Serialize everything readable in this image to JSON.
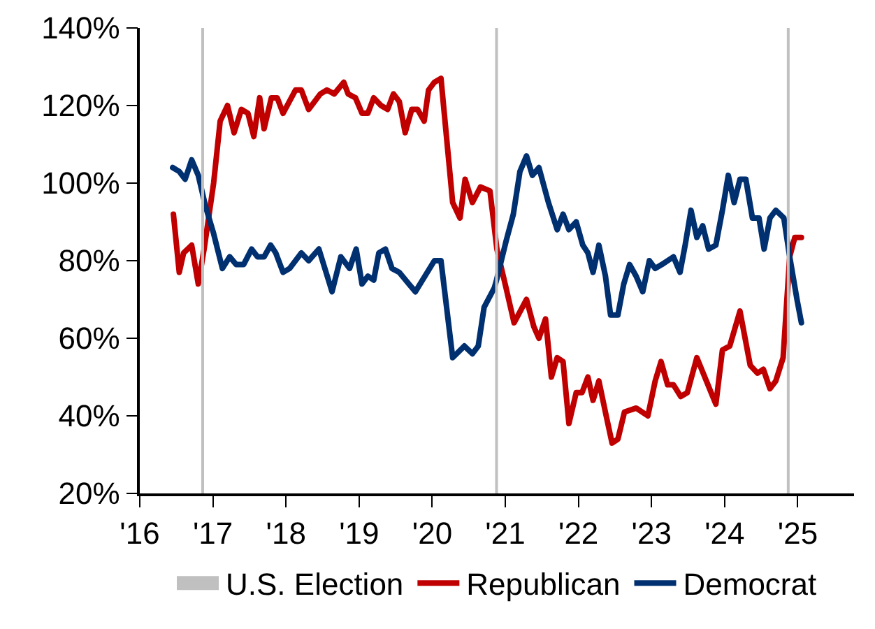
{
  "chart_data": {
    "type": "line",
    "legend": "bottom",
    "grid": false,
    "marker": "none",
    "line_style": "solid",
    "xlim": [
      2016,
      2025.77
    ],
    "xticks": [
      {
        "value": 2016,
        "label": "'16"
      },
      {
        "value": 2017,
        "label": "'17"
      },
      {
        "value": 2018,
        "label": "'18"
      },
      {
        "value": 2019,
        "label": "'19"
      },
      {
        "value": 2020,
        "label": "'20"
      },
      {
        "value": 2021,
        "label": "'21"
      },
      {
        "value": 2022,
        "label": "'22"
      },
      {
        "value": 2023,
        "label": "'23"
      },
      {
        "value": 2024,
        "label": "'24"
      },
      {
        "value": 2025,
        "label": "'25"
      }
    ],
    "ylim": [
      20,
      140
    ],
    "yticks": [
      {
        "value": 20,
        "label": "20%"
      },
      {
        "value": 40,
        "label": "40%"
      },
      {
        "value": 60,
        "label": "60%"
      },
      {
        "value": 80,
        "label": "80%"
      },
      {
        "value": 100,
        "label": "100%"
      },
      {
        "value": 120,
        "label": "120%"
      },
      {
        "value": 140,
        "label": "140%"
      }
    ],
    "ref_lines": [
      {
        "axis": "x",
        "value": 2016.86,
        "label": "U.S. Election",
        "color": "#c0c0c0"
      },
      {
        "axis": "x",
        "value": 2020.88,
        "color": "#c0c0c0"
      },
      {
        "axis": "x",
        "value": 2024.87,
        "color": "#c0c0c0"
      }
    ],
    "series": [
      {
        "name": "Republican",
        "color": "#c00000",
        "x": [
          2016.46,
          2016.54,
          2016.6,
          2016.71,
          2016.8,
          2016.88,
          2017.01,
          2017.1,
          2017.2,
          2017.29,
          2017.39,
          2017.48,
          2017.56,
          2017.64,
          2017.7,
          2017.8,
          2017.88,
          2017.96,
          2018.13,
          2018.21,
          2018.31,
          2018.47,
          2018.56,
          2018.66,
          2018.79,
          2018.85,
          2018.95,
          2019.04,
          2019.12,
          2019.2,
          2019.3,
          2019.39,
          2019.47,
          2019.55,
          2019.63,
          2019.72,
          2019.8,
          2019.89,
          2019.95,
          2020.03,
          2020.12,
          2020.28,
          2020.38,
          2020.45,
          2020.55,
          2020.66,
          2020.79,
          2020.885,
          2021.01,
          2021.12,
          2021.29,
          2021.39,
          2021.46,
          2021.55,
          2021.63,
          2021.71,
          2021.79,
          2021.87,
          2021.97,
          2022.05,
          2022.13,
          2022.2,
          2022.28,
          2022.38,
          2022.46,
          2022.54,
          2022.63,
          2022.79,
          2022.95,
          2023.05,
          2023.13,
          2023.22,
          2023.3,
          2023.4,
          2023.49,
          2023.62,
          2023.75,
          2023.88,
          2023.97,
          2024.07,
          2024.21,
          2024.35,
          2024.45,
          2024.53,
          2024.62,
          2024.7,
          2024.8,
          2024.89,
          2024.96,
          2025.05
        ],
        "values": [
          92,
          77,
          82,
          84,
          74,
          83,
          100,
          116,
          120,
          113,
          119,
          118,
          112,
          122,
          114,
          122,
          122,
          118,
          124,
          124,
          119,
          123,
          124,
          123,
          126,
          123,
          122,
          118,
          118,
          122,
          120,
          119,
          123,
          121,
          113,
          119,
          119,
          116,
          124,
          126,
          127,
          95,
          91,
          101,
          95,
          99,
          98,
          83,
          73,
          64,
          70,
          63,
          60,
          65,
          50,
          55,
          54,
          38,
          46,
          46,
          50,
          44,
          49,
          40,
          33,
          34,
          41,
          42,
          40,
          49,
          54,
          48,
          48,
          45,
          46,
          55,
          49,
          43,
          57,
          58,
          67,
          53,
          51,
          52,
          47,
          49,
          55,
          81,
          86,
          86
        ]
      },
      {
        "name": "Democrat",
        "color": "#003070",
        "x": [
          2016.45,
          2016.54,
          2016.62,
          2016.71,
          2016.8,
          2016.9,
          2017.01,
          2017.13,
          2017.23,
          2017.32,
          2017.42,
          2017.53,
          2017.61,
          2017.7,
          2017.79,
          2017.86,
          2017.96,
          2018.05,
          2018.21,
          2018.31,
          2018.45,
          2018.63,
          2018.75,
          2018.87,
          2018.96,
          2019.04,
          2019.12,
          2019.2,
          2019.27,
          2019.36,
          2019.45,
          2019.55,
          2019.68,
          2019.77,
          2020.03,
          2020.12,
          2020.28,
          2020.44,
          2020.55,
          2020.63,
          2020.71,
          2020.85,
          2020.88,
          2021.01,
          2021.11,
          2021.2,
          2021.29,
          2021.37,
          2021.46,
          2021.59,
          2021.71,
          2021.79,
          2021.87,
          2021.97,
          2022.06,
          2022.13,
          2022.2,
          2022.28,
          2022.37,
          2022.44,
          2022.54,
          2022.62,
          2022.7,
          2022.79,
          2022.88,
          2022.97,
          2023.05,
          2023.14,
          2023.3,
          2023.39,
          2023.46,
          2023.54,
          2023.62,
          2023.7,
          2023.78,
          2023.88,
          2023.97,
          2024.05,
          2024.13,
          2024.21,
          2024.29,
          2024.38,
          2024.47,
          2024.54,
          2024.62,
          2024.7,
          2024.81,
          2024.89,
          2024.99,
          2025.05
        ],
        "values": [
          104,
          103,
          101,
          106,
          102,
          94,
          87,
          78,
          81,
          79,
          79,
          83,
          81,
          81,
          84,
          82,
          77,
          78,
          82,
          80,
          83,
          72,
          81,
          78,
          83,
          74,
          76,
          75,
          82,
          83,
          78,
          77,
          74,
          72,
          80,
          80,
          55,
          58,
          56,
          58,
          68,
          73,
          75,
          85,
          92,
          103,
          107,
          102,
          104,
          95,
          88,
          92,
          88,
          90,
          84,
          82,
          77,
          84,
          76,
          66,
          66,
          74,
          79,
          76,
          72,
          80,
          78,
          79,
          81,
          77,
          84,
          93,
          86,
          89,
          83,
          84,
          93,
          102,
          95,
          101,
          101,
          91,
          91,
          83,
          91,
          93,
          91,
          81,
          70,
          64
        ]
      }
    ]
  }
}
